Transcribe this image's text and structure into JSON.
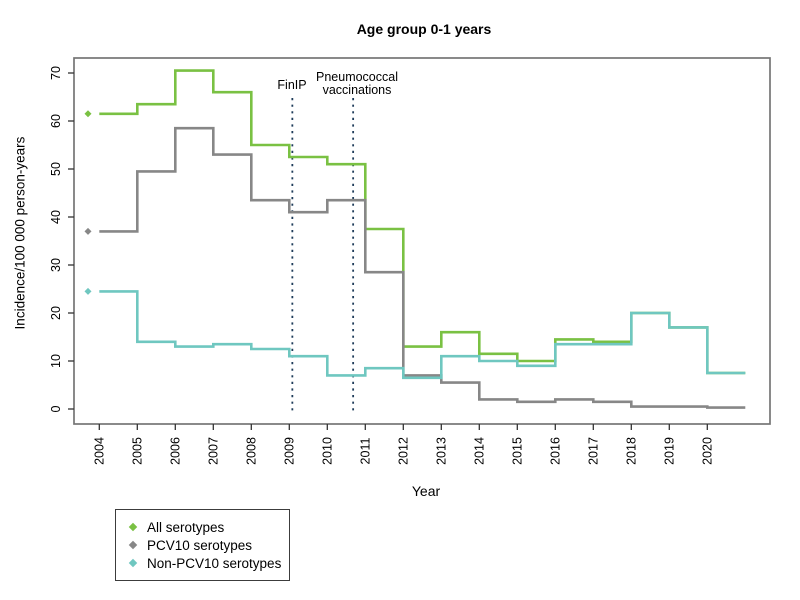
{
  "title": "Age group 0-1 years",
  "axes": {
    "x_label": "Year",
    "y_label": "Incidence/100 000 person-years",
    "x_ticks": [
      2004,
      2005,
      2006,
      2007,
      2008,
      2009,
      2010,
      2011,
      2012,
      2013,
      2014,
      2015,
      2016,
      2017,
      2018,
      2019,
      2020
    ],
    "y_ticks": [
      0,
      10,
      20,
      30,
      40,
      50,
      60,
      70
    ]
  },
  "annotations": {
    "finip_label": "FinIP",
    "vaccination_label_line1": "Pneumococcal",
    "vaccination_label_line2": "vaccinations",
    "color": "#1f3c5a"
  },
  "legend": {
    "items": [
      {
        "label": "All serotypes",
        "color": "#7ac143"
      },
      {
        "label": "PCV10 serotypes",
        "color": "#878787"
      },
      {
        "label": "Non-PCV10 serotypes",
        "color": "#6fc7c0"
      }
    ]
  },
  "frame_color": "#757575",
  "chart_data": {
    "type": "line",
    "subtype": "step",
    "title": "Age group 0-1 years",
    "xlabel": "Year",
    "ylabel": "Incidence/100 000 person-years",
    "x": [
      2004,
      2005,
      2006,
      2007,
      2008,
      2009,
      2010,
      2011,
      2012,
      2013,
      2014,
      2015,
      2016,
      2017,
      2018,
      2019,
      2020
    ],
    "ylim": [
      0,
      70.5
    ],
    "grid": false,
    "legend_position": "bottom-left-outside",
    "series": [
      {
        "name": "All serotypes",
        "color": "#7ac143",
        "values": [
          61.5,
          63.5,
          70.5,
          66,
          55,
          52.5,
          51,
          37.5,
          13,
          16,
          11.5,
          10,
          14.5,
          14,
          20,
          17,
          7.5
        ]
      },
      {
        "name": "PCV10 serotypes",
        "color": "#878787",
        "values": [
          37,
          49.5,
          58.5,
          53,
          43.5,
          41,
          43.5,
          28.5,
          7,
          5.5,
          2,
          1.5,
          2,
          1.5,
          0.5,
          0.5,
          0.3
        ]
      },
      {
        "name": "Non-PCV10 serotypes",
        "color": "#6fc7c0",
        "values": [
          24.5,
          14,
          13,
          13.5,
          12.5,
          11,
          7,
          8.5,
          6.5,
          11,
          10,
          9,
          13.5,
          13.5,
          20,
          17,
          7.5
        ]
      }
    ],
    "vlines": [
      {
        "x": 2009.08,
        "label": "FinIP",
        "style": "dotted"
      },
      {
        "x": 2010.68,
        "label": "Pneumococcal vaccinations",
        "style": "dotted"
      }
    ]
  }
}
